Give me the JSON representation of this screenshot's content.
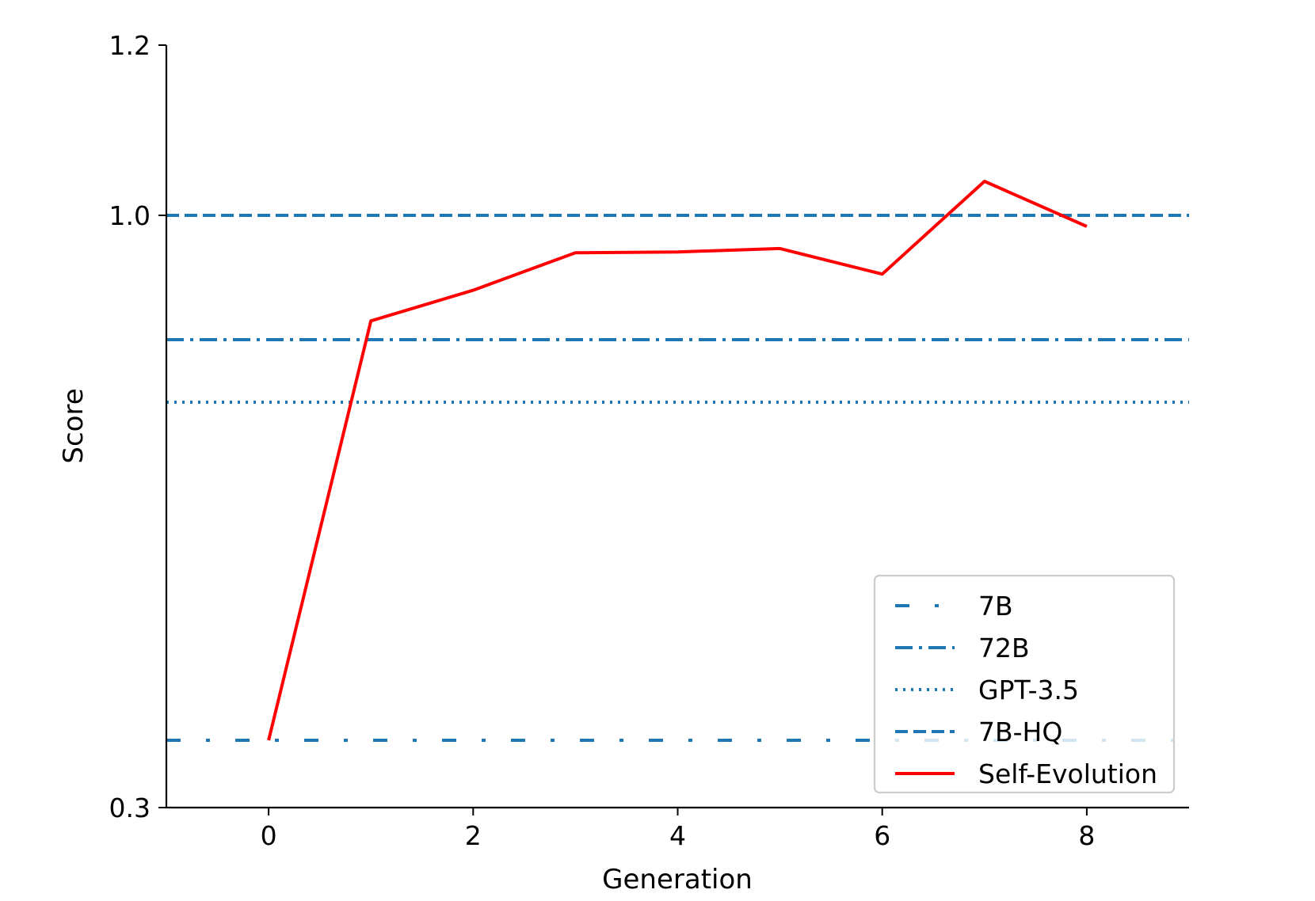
{
  "chart_data": {
    "type": "line",
    "xlabel": "Generation",
    "ylabel": "Score",
    "xlim": [
      -1,
      9
    ],
    "x_ticks": [
      0,
      2,
      4,
      6,
      8
    ],
    "y_tick_labels": [
      "0.3",
      "1.0",
      "1.2"
    ],
    "y_axis": "piecewise: 0.3 at bottom, 1.0 and 1.2 labeled above",
    "grid": false,
    "legend_position": "bottom-right",
    "reference_lines": [
      {
        "name": "7B",
        "y": 0.38,
        "style": "dash-dot-sparse",
        "color": "#1f77b4"
      },
      {
        "name": "72B",
        "y": 0.854,
        "style": "dash-dot",
        "color": "#1f77b4"
      },
      {
        "name": "GPT-3.5",
        "y": 0.78,
        "style": "dotted",
        "color": "#1f77b4"
      },
      {
        "name": "7B-HQ",
        "y": 1.0,
        "style": "dashed",
        "color": "#1f77b4"
      }
    ],
    "series": [
      {
        "name": "Self-Evolution",
        "color": "#ff0000",
        "x": [
          0,
          1,
          2,
          3,
          4,
          5,
          6,
          7,
          8
        ],
        "values": [
          0.38,
          0.876,
          0.912,
          0.956,
          0.957,
          0.961,
          0.931,
          1.04,
          0.987
        ]
      }
    ]
  }
}
